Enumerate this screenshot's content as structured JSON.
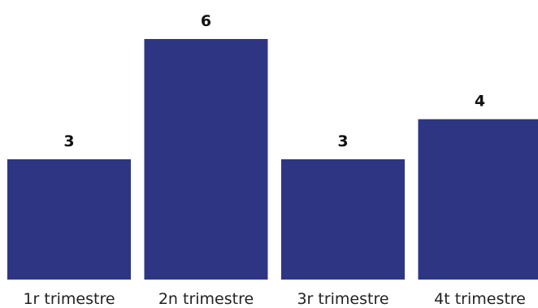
{
  "chart_data": {
    "type": "bar",
    "categories": [
      "1r trimestre",
      "2n trimestre",
      "3r trimestre",
      "4t trimestre"
    ],
    "values": [
      3,
      6,
      3,
      4
    ],
    "title": "",
    "xlabel": "",
    "ylabel": "",
    "ylim": [
      0,
      6
    ],
    "grid": false,
    "legend": "none",
    "data_labels": true,
    "bar_color": "#2e3683"
  }
}
